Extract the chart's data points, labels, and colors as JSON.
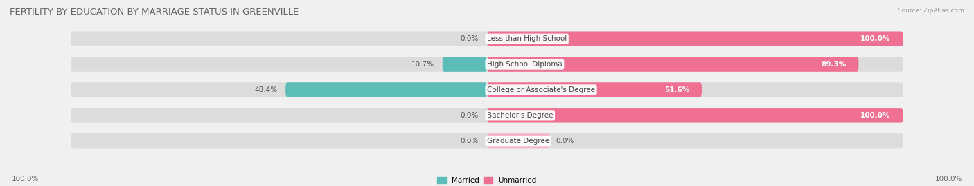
{
  "title": "FERTILITY BY EDUCATION BY MARRIAGE STATUS IN GREENVILLE",
  "source": "Source: ZipAtlas.com",
  "categories": [
    "Less than High School",
    "High School Diploma",
    "College or Associate's Degree",
    "Bachelor's Degree",
    "Graduate Degree"
  ],
  "married": [
    0.0,
    10.7,
    48.4,
    0.0,
    0.0
  ],
  "unmarried": [
    100.0,
    89.3,
    51.6,
    100.0,
    0.0
  ],
  "unmarried_graduate": 0.0,
  "married_color": "#5bbcb8",
  "unmarried_color": "#f07093",
  "unmarried_graduate_color": "#f5b8c8",
  "bg_color": "#f0f0f0",
  "bar_bg_color": "#dcdcdc",
  "title_fontsize": 9.5,
  "label_fontsize": 7.5,
  "tick_fontsize": 7.5,
  "total_width": 100.0,
  "xlim_left": -55,
  "xlim_right": 55
}
